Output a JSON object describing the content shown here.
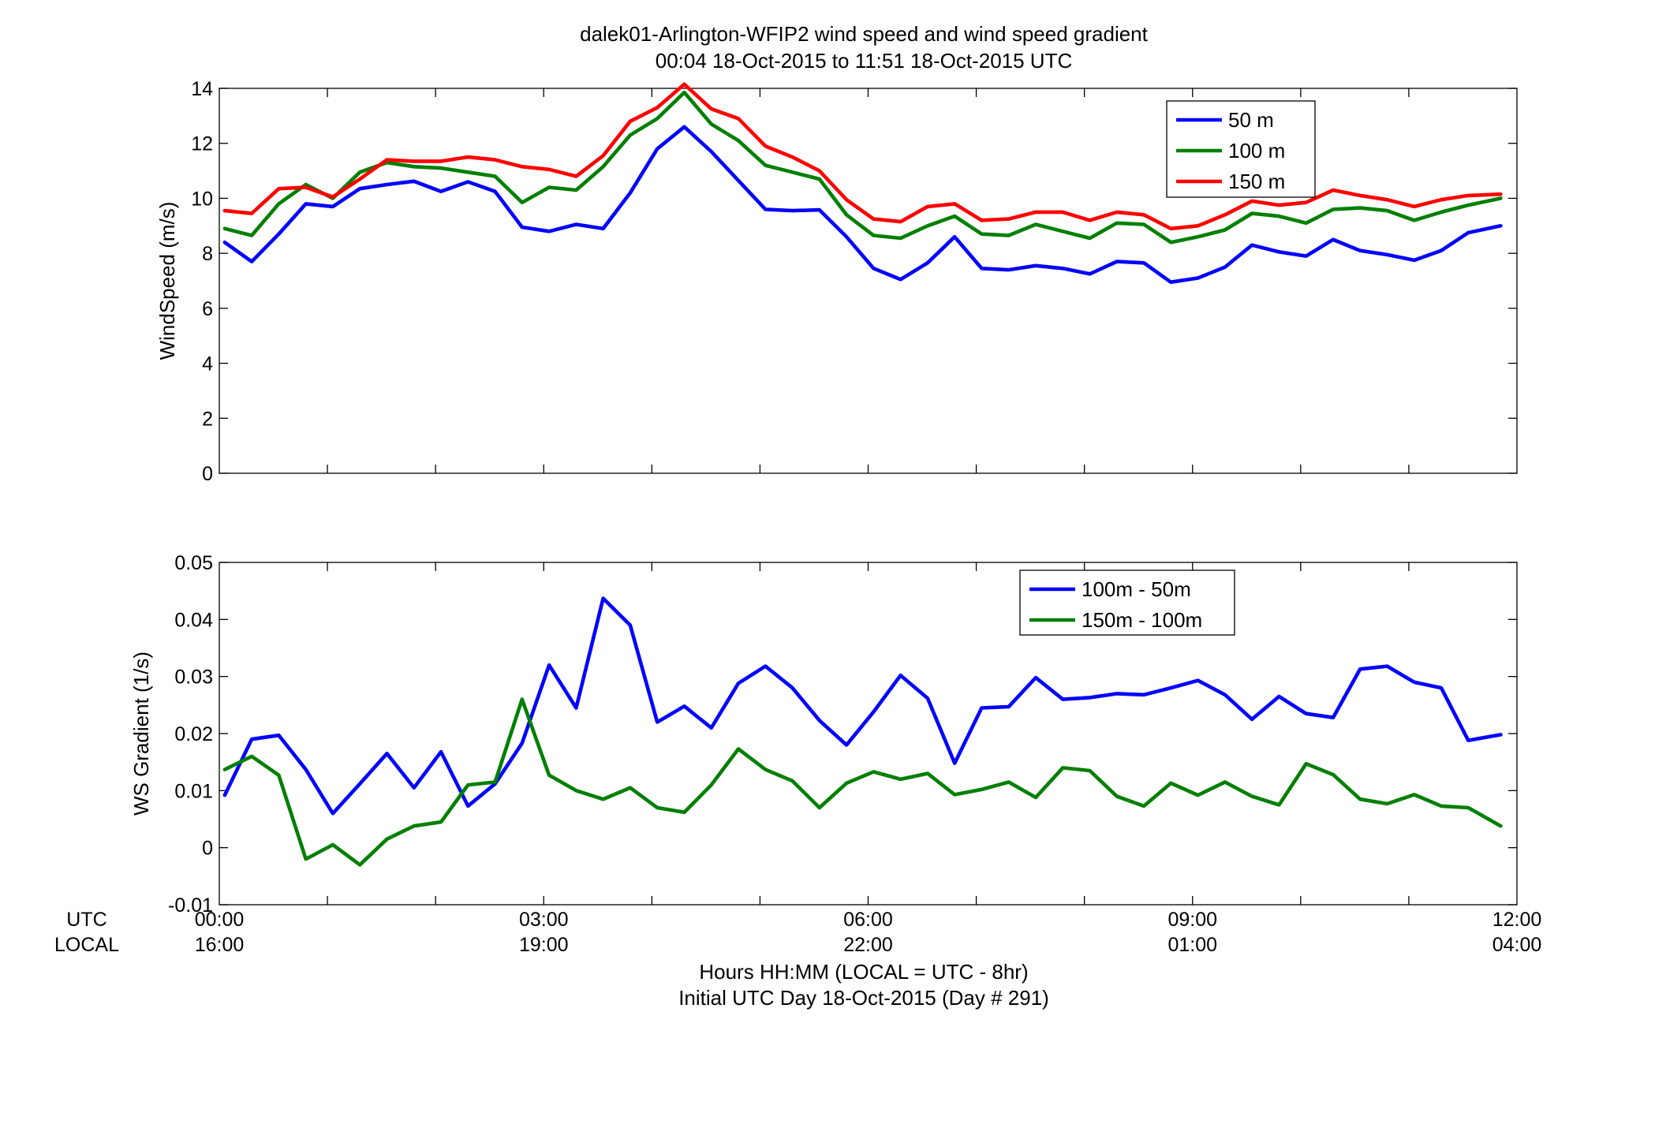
{
  "figure": {
    "title_line1": "dalek01-Arlington-WFIP2  wind speed and wind speed gradient",
    "title_line2": "00:04 18-Oct-2015 to 11:51 18-Oct-2015  UTC",
    "row_label_utc": "UTC",
    "row_label_local": "LOCAL",
    "xlabel_line1": "Hours HH:MM  (LOCAL = UTC - 8hr)",
    "xlabel_line2": "Initial UTC Day 18-Oct-2015 (Day # 291)",
    "utc_ticks": [
      "00:00",
      "03:00",
      "06:00",
      "09:00",
      "12:00"
    ],
    "local_ticks": [
      "16:00",
      "19:00",
      "22:00",
      "01:00",
      "04:00"
    ]
  },
  "chart_data": [
    {
      "type": "line",
      "ylabel": "WindSpeed (m/s)",
      "xlim": [
        0,
        12
      ],
      "ylim": [
        0,
        14
      ],
      "yticks": [
        0,
        2,
        4,
        6,
        8,
        10,
        12,
        14
      ],
      "x_hours": [
        0.05,
        0.3,
        0.55,
        0.8,
        1.05,
        1.3,
        1.55,
        1.8,
        2.05,
        2.3,
        2.55,
        2.8,
        3.05,
        3.3,
        3.55,
        3.8,
        4.05,
        4.3,
        4.55,
        4.8,
        5.05,
        5.3,
        5.55,
        5.8,
        6.05,
        6.3,
        6.55,
        6.8,
        7.05,
        7.3,
        7.55,
        7.8,
        8.05,
        8.3,
        8.55,
        8.8,
        9.05,
        9.3,
        9.55,
        9.8,
        10.05,
        10.3,
        10.55,
        10.8,
        11.05,
        11.3,
        11.55,
        11.85
      ],
      "legend_position": "top-right",
      "series": [
        {
          "name": "50 m",
          "color": "#0000ff",
          "values": [
            8.4,
            7.7,
            8.7,
            9.8,
            9.7,
            10.35,
            10.5,
            10.62,
            10.25,
            10.6,
            10.25,
            8.95,
            8.8,
            9.05,
            8.9,
            10.2,
            11.8,
            12.6,
            11.7,
            10.65,
            9.6,
            9.55,
            9.58,
            8.6,
            7.45,
            7.05,
            7.65,
            8.6,
            7.45,
            7.4,
            7.55,
            7.45,
            7.25,
            7.7,
            7.65,
            6.95,
            7.1,
            7.5,
            8.3,
            8.05,
            7.9,
            8.5,
            8.1,
            7.95,
            7.75,
            8.1,
            8.75,
            9.0
          ]
        },
        {
          "name": "100 m",
          "color": "#007f00",
          "values": [
            8.9,
            8.65,
            9.8,
            10.5,
            10.0,
            10.95,
            11.3,
            11.15,
            11.1,
            10.95,
            10.8,
            9.85,
            10.4,
            10.3,
            11.15,
            12.3,
            12.9,
            13.85,
            12.7,
            12.1,
            11.2,
            10.95,
            10.7,
            9.4,
            8.65,
            8.55,
            9.0,
            9.35,
            8.7,
            8.65,
            9.05,
            8.8,
            8.55,
            9.1,
            9.05,
            8.4,
            8.6,
            8.85,
            9.45,
            9.35,
            9.1,
            9.6,
            9.65,
            9.55,
            9.2,
            9.5,
            9.75,
            10.0
          ]
        },
        {
          "name": "150 m",
          "color": "#ff0000",
          "values": [
            9.55,
            9.45,
            10.35,
            10.4,
            10.05,
            10.7,
            11.4,
            11.35,
            11.35,
            11.5,
            11.4,
            11.15,
            11.05,
            10.8,
            11.55,
            12.8,
            13.3,
            14.15,
            13.25,
            12.9,
            11.9,
            11.5,
            11.0,
            9.95,
            9.25,
            9.15,
            9.7,
            9.8,
            9.2,
            9.25,
            9.5,
            9.5,
            9.2,
            9.5,
            9.4,
            8.9,
            9.0,
            9.4,
            9.9,
            9.75,
            9.85,
            10.3,
            10.1,
            9.95,
            9.7,
            9.95,
            10.1,
            10.15
          ]
        }
      ]
    },
    {
      "type": "line",
      "ylabel": "WS Gradient (1/s)",
      "xlim": [
        0,
        12
      ],
      "ylim": [
        -0.01,
        0.05
      ],
      "yticks": [
        -0.01,
        0,
        0.01,
        0.02,
        0.03,
        0.04,
        0.05
      ],
      "ytick_labels": [
        "-0.01",
        "0",
        "0.01",
        "0.02",
        "0.03",
        "0.04",
        "0.05"
      ],
      "x_hours": [
        0.05,
        0.3,
        0.55,
        0.8,
        1.05,
        1.3,
        1.55,
        1.8,
        2.05,
        2.3,
        2.55,
        2.8,
        3.05,
        3.3,
        3.55,
        3.8,
        4.05,
        4.3,
        4.55,
        4.8,
        5.05,
        5.3,
        5.55,
        5.8,
        6.05,
        6.3,
        6.55,
        6.8,
        7.05,
        7.3,
        7.55,
        7.8,
        8.05,
        8.3,
        8.55,
        8.8,
        9.05,
        9.3,
        9.55,
        9.8,
        10.05,
        10.3,
        10.55,
        10.8,
        11.05,
        11.3,
        11.55,
        11.85
      ],
      "legend_position": "top-right",
      "series": [
        {
          "name": "100m - 50m",
          "color": "#0000ff",
          "values": [
            0.0092,
            0.019,
            0.0197,
            0.0137,
            0.006,
            0.0112,
            0.0165,
            0.0105,
            0.0168,
            0.0073,
            0.0112,
            0.0183,
            0.032,
            0.0245,
            0.0437,
            0.039,
            0.022,
            0.0248,
            0.021,
            0.0288,
            0.0318,
            0.028,
            0.0223,
            0.018,
            0.0238,
            0.0302,
            0.0262,
            0.0148,
            0.0245,
            0.0247,
            0.0298,
            0.026,
            0.0263,
            0.027,
            0.0268,
            0.028,
            0.0293,
            0.0268,
            0.0225,
            0.0265,
            0.0235,
            0.0228,
            0.0313,
            0.0318,
            0.029,
            0.028,
            0.0188,
            0.0198
          ]
        },
        {
          "name": "150m - 100m",
          "color": "#007f00",
          "values": [
            0.0137,
            0.016,
            0.0127,
            -0.002,
            0.0005,
            -0.003,
            0.0015,
            0.0038,
            0.0045,
            0.011,
            0.0115,
            0.026,
            0.0127,
            0.01,
            0.0085,
            0.0105,
            0.007,
            0.0062,
            0.011,
            0.0173,
            0.0137,
            0.0117,
            0.007,
            0.0113,
            0.0133,
            0.012,
            0.013,
            0.0093,
            0.0102,
            0.0115,
            0.0088,
            0.014,
            0.0135,
            0.009,
            0.0073,
            0.0113,
            0.0092,
            0.0115,
            0.009,
            0.0075,
            0.0147,
            0.0128,
            0.0085,
            0.0077,
            0.0093,
            0.0073,
            0.007,
            0.0038
          ]
        }
      ]
    }
  ]
}
